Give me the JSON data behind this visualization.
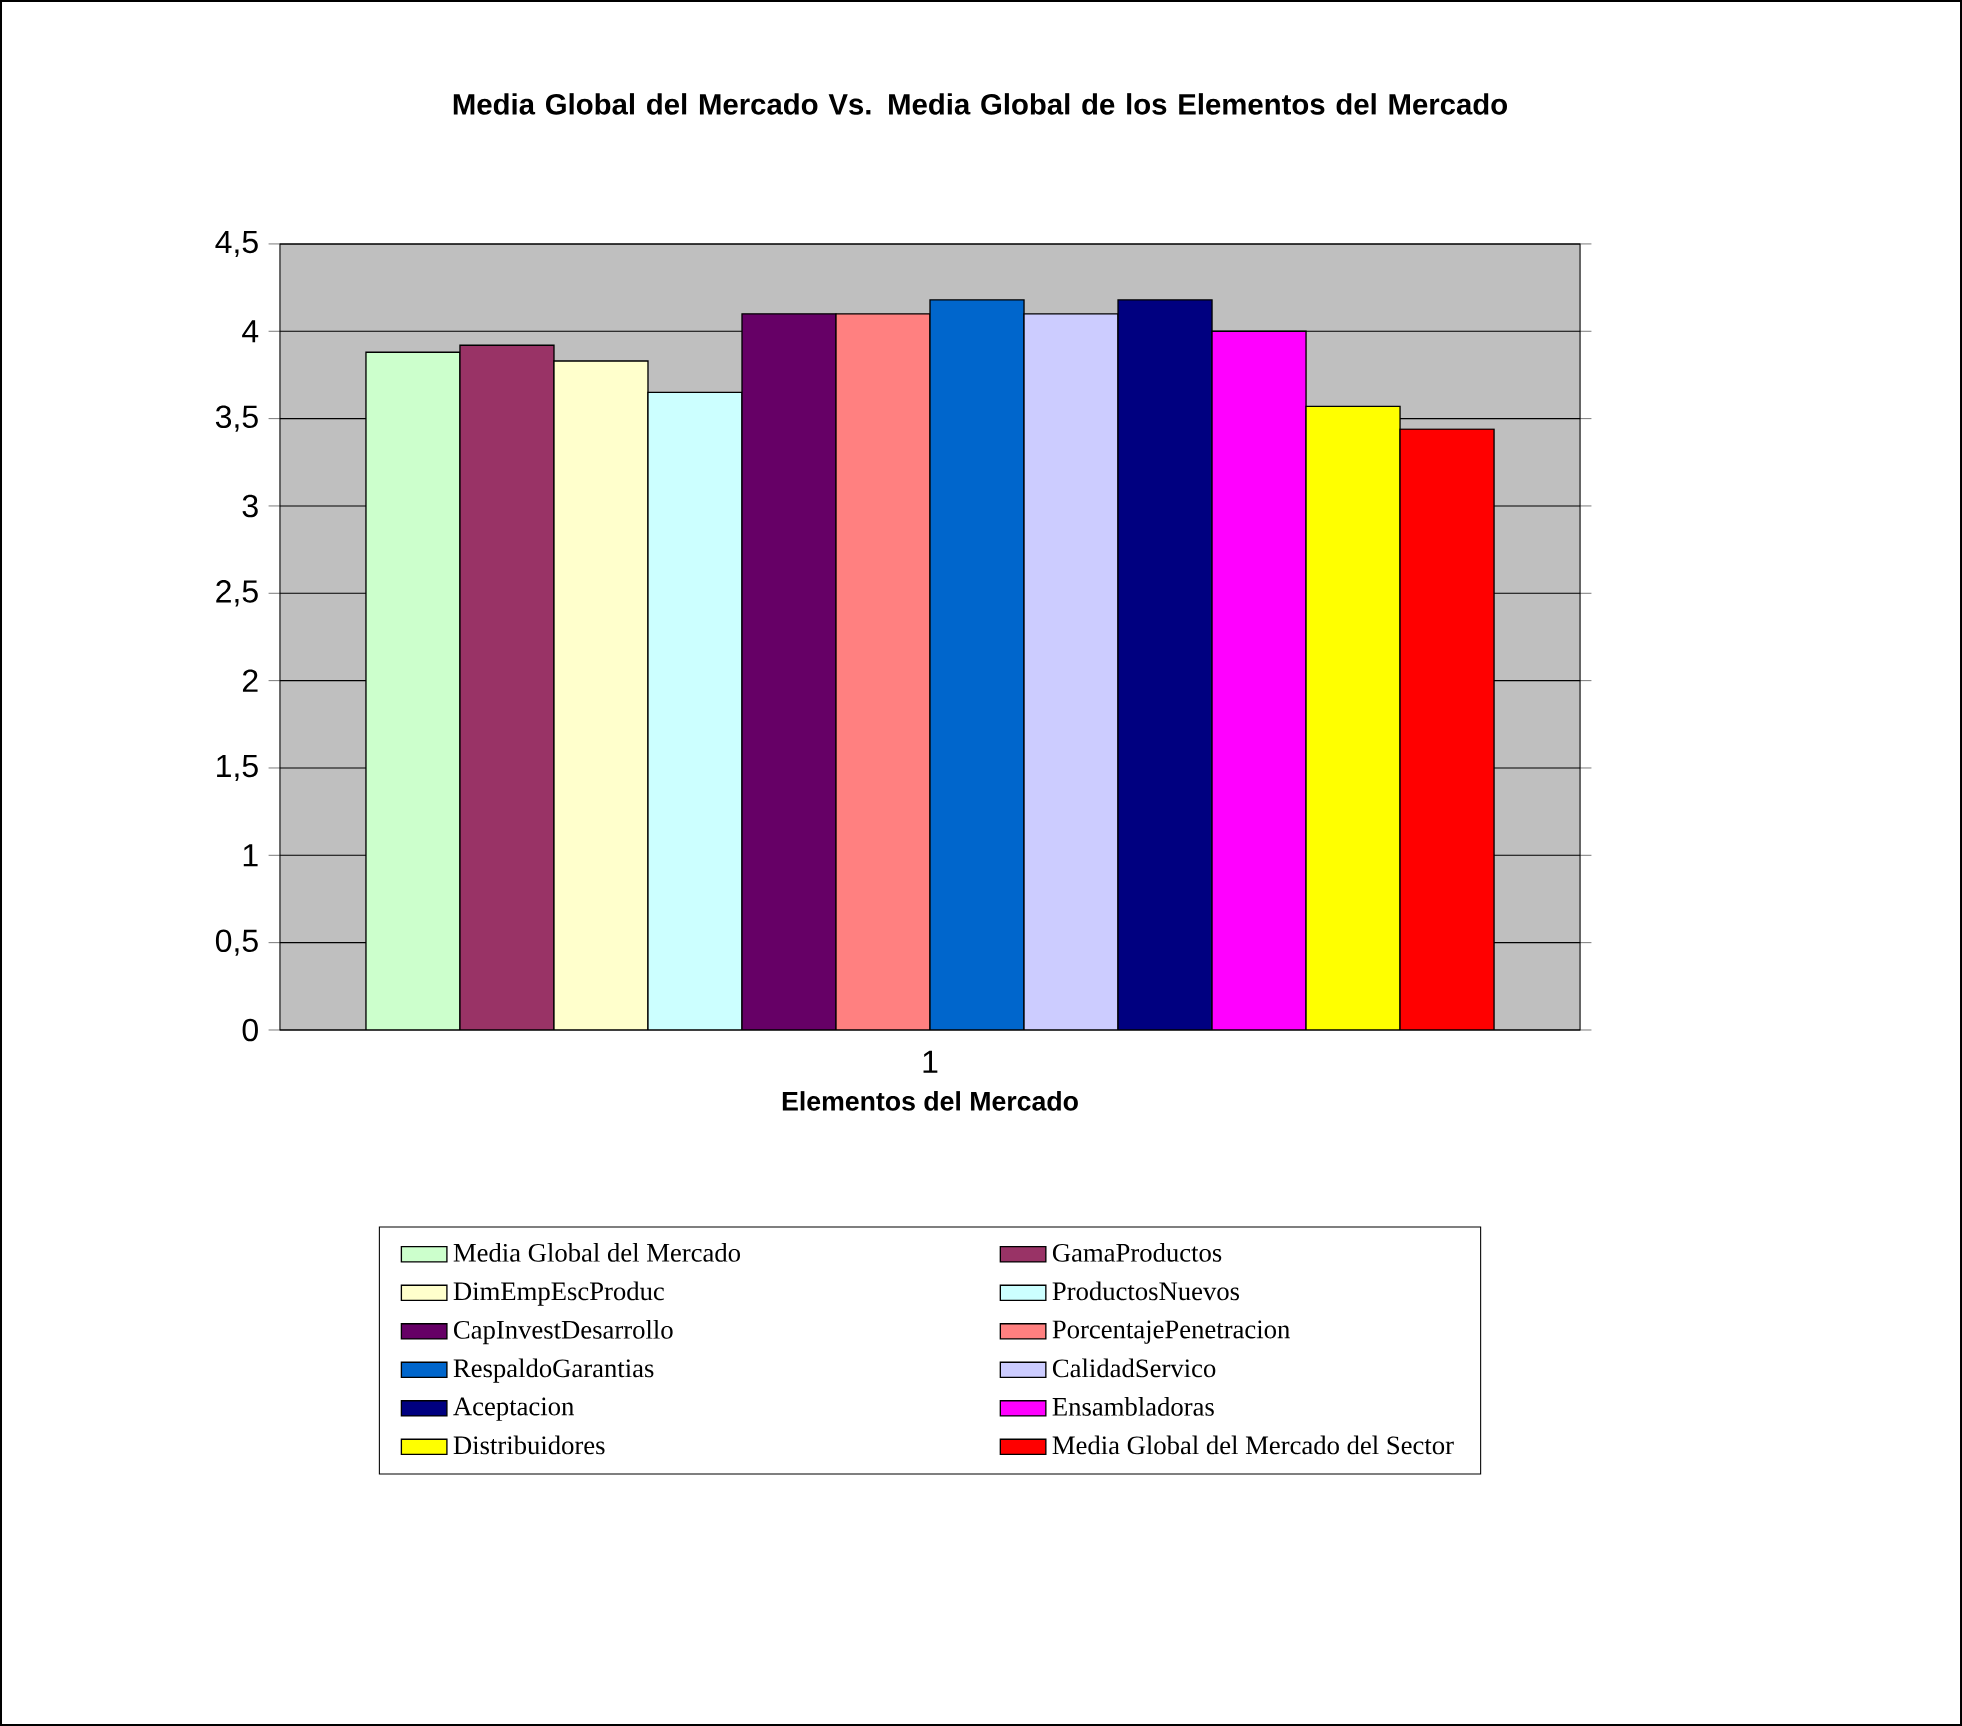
{
  "chart_data": {
    "type": "bar",
    "title": "Media Global del Mercado Vs. Media Global de los Elementos del Mercado",
    "xlabel": "Elementos del Mercado",
    "categories": [
      "1"
    ],
    "series": [
      {
        "name": "Media Global del Mercado",
        "color": "#ccffcc",
        "values": [
          3.88
        ]
      },
      {
        "name": "GamaProductos",
        "color": "#993366",
        "values": [
          3.92
        ]
      },
      {
        "name": "DimEmpEscProduc",
        "color": "#ffffcc",
        "values": [
          3.83
        ]
      },
      {
        "name": "ProductosNuevos",
        "color": "#ccffff",
        "values": [
          3.65
        ]
      },
      {
        "name": "CapInvestDesarrollo",
        "color": "#660066",
        "values": [
          4.1
        ]
      },
      {
        "name": "PorcentajePenetracion",
        "color": "#ff8080",
        "values": [
          4.1
        ]
      },
      {
        "name": "RespaldoGarantias",
        "color": "#0066cc",
        "values": [
          4.18
        ]
      },
      {
        "name": "CalidadServico",
        "color": "#ccccff",
        "values": [
          4.1
        ]
      },
      {
        "name": "Aceptacion",
        "color": "#000080",
        "values": [
          4.18
        ]
      },
      {
        "name": "Ensambladoras",
        "color": "#ff00ff",
        "values": [
          4.0
        ]
      },
      {
        "name": "Distribuidores",
        "color": "#ffff00",
        "values": [
          3.57
        ]
      },
      {
        "name": "Media Global del Mercado del Sector",
        "color": "#ff0000",
        "values": [
          3.44
        ]
      }
    ],
    "ylim": [
      0,
      4.5
    ],
    "yticks": [
      0,
      {
        "value": 0.5,
        "label": "0,5"
      },
      1,
      {
        "value": 1.5,
        "label": "1,5"
      },
      2,
      {
        "value": 2.5,
        "label": "2,5"
      },
      3,
      {
        "value": 3.5,
        "label": "3,5"
      },
      4,
      {
        "value": 4.5,
        "label": "4,5"
      }
    ],
    "grid": "y",
    "legend": "bottom"
  }
}
